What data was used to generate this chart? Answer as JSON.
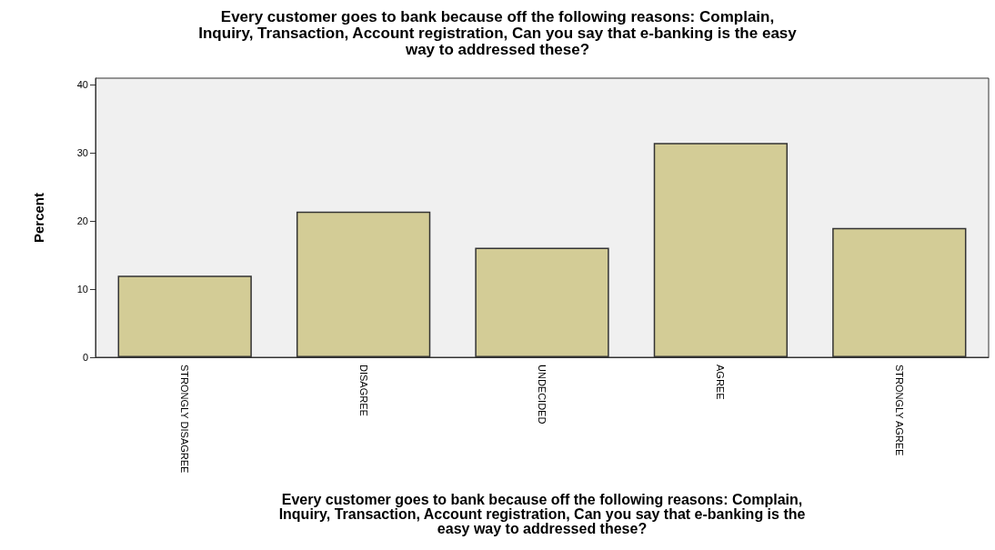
{
  "chart_data": {
    "type": "bar",
    "title": "Every customer goes to bank because off the following reasons: Complain,\nInquiry, Transaction, Account registration, Can you say that e-banking is the easy\nway to addressed these?",
    "xlabel": "Every customer goes to bank because off the following reasons: Complain,\nInquiry, Transaction, Account registration, Can you say that e-banking is the\neasy way to addressed these?",
    "ylabel": "Percent",
    "categories": [
      "STRONGLY DISAGREE",
      "DISAGREE",
      "UNDECIDED",
      "AGREE",
      "STRONGLY AGREE"
    ],
    "values": [
      12.0,
      21.4,
      16.1,
      31.5,
      19.0
    ],
    "color": "#d3cc96",
    "ylim": [
      0,
      41
    ],
    "yticks": [
      0,
      10,
      20,
      30,
      40
    ],
    "grid": false
  }
}
